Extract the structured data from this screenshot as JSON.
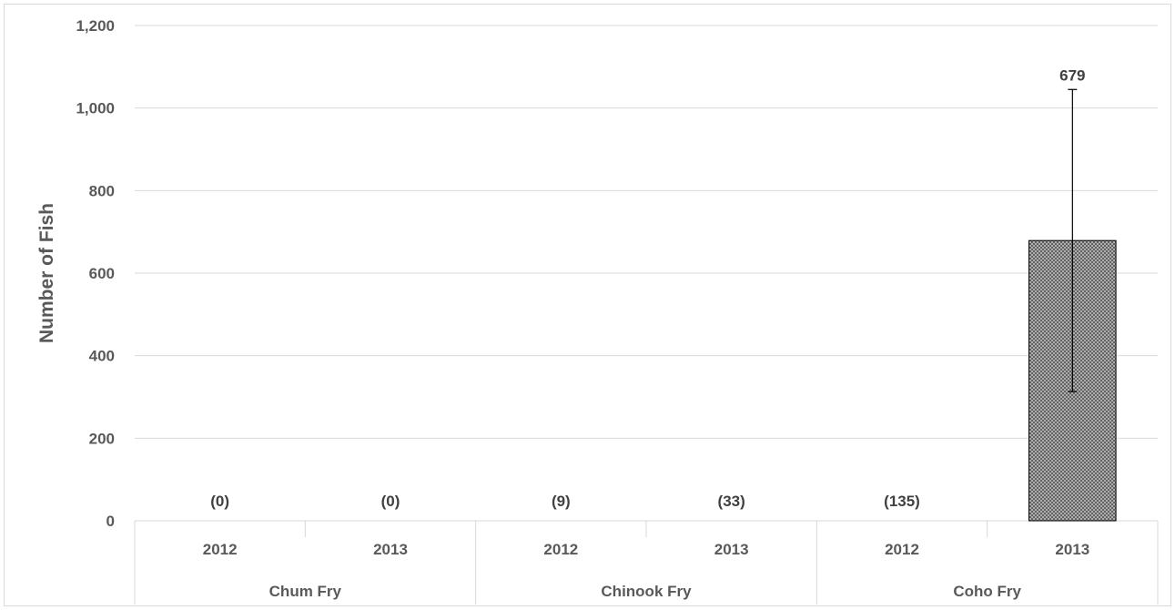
{
  "chart_data": {
    "type": "bar",
    "title": "",
    "xlabel": "",
    "ylabel": "Number of Fish",
    "ylim": [
      0,
      1200
    ],
    "ytick_step": 200,
    "yticks": [
      "0",
      "200",
      "400",
      "600",
      "800",
      "1,000",
      "1,200"
    ],
    "grid": true,
    "legend": "none",
    "groups": [
      {
        "label": "Chum Fry",
        "years": [
          "2012",
          "2013"
        ]
      },
      {
        "label": "Chinook Fry",
        "years": [
          "2012",
          "2013"
        ]
      },
      {
        "label": "Coho Fry",
        "years": [
          "2012",
          "2013"
        ]
      }
    ],
    "categories": [
      "Chum Fry 2012",
      "Chum Fry 2013",
      "Chinook Fry 2012",
      "Chinook Fry 2013",
      "Coho Fry 2012",
      "Coho Fry 2013"
    ],
    "values": [
      0,
      0,
      9,
      33,
      135,
      679
    ],
    "data_labels": [
      "(0)",
      "(0)",
      "(9)",
      "(33)",
      "(135)",
      "679"
    ],
    "bar_visible": [
      false,
      false,
      false,
      false,
      false,
      true
    ],
    "error_bars": [
      null,
      null,
      null,
      null,
      null,
      {
        "lower": 313,
        "upper": 1045
      }
    ],
    "colors": {
      "bar_fill": "#a6a6a6",
      "bar_stroke": "#000000",
      "grid": "#d9d9d9",
      "text": "#595959"
    }
  }
}
